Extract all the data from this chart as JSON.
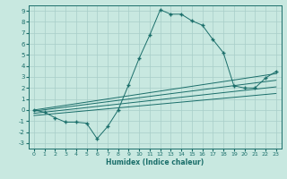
{
  "xlabel": "Humidex (Indice chaleur)",
  "ylabel": "",
  "background_color": "#c8e8e0",
  "grid_color": "#a8cec8",
  "line_color": "#1a6e6a",
  "xlim": [
    -0.5,
    23.5
  ],
  "ylim": [
    -3.5,
    9.5
  ],
  "xticks": [
    0,
    1,
    2,
    3,
    4,
    5,
    6,
    7,
    8,
    9,
    10,
    11,
    12,
    13,
    14,
    15,
    16,
    17,
    18,
    19,
    20,
    21,
    22,
    23
  ],
  "yticks": [
    -3,
    -2,
    -1,
    0,
    1,
    2,
    3,
    4,
    5,
    6,
    7,
    8,
    9
  ],
  "curve1_x": [
    0,
    1,
    2,
    3,
    4,
    5,
    6,
    7,
    8,
    9,
    10,
    11,
    12,
    13,
    14,
    15,
    16,
    17,
    18,
    19,
    20,
    21,
    22,
    23
  ],
  "curve1_y": [
    0.0,
    -0.2,
    -0.7,
    -1.1,
    -1.1,
    -1.2,
    -2.6,
    -1.5,
    0.0,
    2.3,
    4.7,
    6.8,
    9.1,
    8.7,
    8.7,
    8.1,
    7.7,
    6.4,
    5.2,
    2.2,
    2.0,
    2.0,
    2.9,
    3.5
  ],
  "line1_x": [
    0,
    23
  ],
  "line1_y": [
    0.0,
    3.3
  ],
  "line2_x": [
    0,
    23
  ],
  "line2_y": [
    -0.1,
    2.7
  ],
  "line3_x": [
    0,
    23
  ],
  "line3_y": [
    -0.3,
    2.1
  ],
  "line4_x": [
    0,
    23
  ],
  "line4_y": [
    -0.5,
    1.5
  ]
}
